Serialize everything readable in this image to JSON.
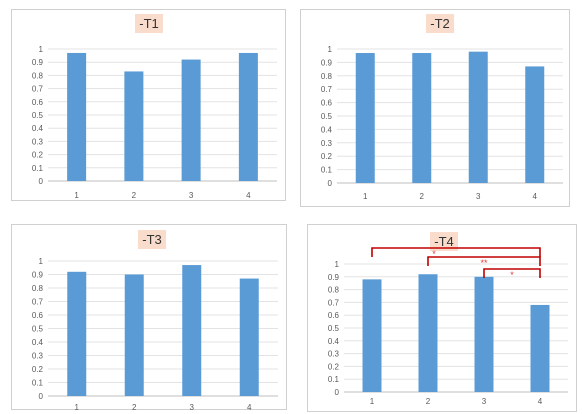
{
  "bar_color": "#5b9bd5",
  "significance_color": "#c00000",
  "chart_data": [
    {
      "type": "bar",
      "title": "-T1",
      "categories": [
        "1",
        "2",
        "3",
        "4"
      ],
      "values": [
        0.97,
        0.83,
        0.92,
        0.97
      ],
      "ylim": [
        0,
        1
      ],
      "yticks": [
        "0",
        "0.1",
        "0.2",
        "0.3",
        "0.4",
        "0.5",
        "0.6",
        "0.7",
        "0.8",
        "0.9",
        "1"
      ],
      "grid": true
    },
    {
      "type": "bar",
      "title": "-T2",
      "categories": [
        "1",
        "2",
        "3",
        "4"
      ],
      "values": [
        0.97,
        0.97,
        0.98,
        0.87
      ],
      "ylim": [
        0,
        1
      ],
      "yticks": [
        "0",
        "0.1",
        "0.2",
        "0.3",
        "0.4",
        "0.5",
        "0.6",
        "0.7",
        "0.8",
        "0.9",
        "1"
      ],
      "grid": true
    },
    {
      "type": "bar",
      "title": "-T3",
      "categories": [
        "1",
        "2",
        "3",
        "4"
      ],
      "values": [
        0.92,
        0.9,
        0.97,
        0.87
      ],
      "ylim": [
        0,
        1
      ],
      "yticks": [
        "0",
        "0.1",
        "0.2",
        "0.3",
        "0.4",
        "0.5",
        "0.6",
        "0.7",
        "0.8",
        "0.9",
        "1"
      ],
      "grid": true
    },
    {
      "type": "bar",
      "title": "-T4",
      "categories": [
        "1",
        "2",
        "3",
        "4"
      ],
      "values": [
        0.88,
        0.92,
        0.9,
        0.68
      ],
      "ylim": [
        0,
        1
      ],
      "yticks": [
        "0",
        "0.1",
        "0.2",
        "0.3",
        "0.4",
        "0.5",
        "0.6",
        "0.7",
        "0.8",
        "0.9",
        "1"
      ],
      "grid": true,
      "significance": [
        {
          "from": "1",
          "to": "4",
          "label": "*"
        },
        {
          "from": "2",
          "to": "4",
          "label": "**"
        },
        {
          "from": "3",
          "to": "4",
          "label": "*"
        }
      ]
    }
  ]
}
